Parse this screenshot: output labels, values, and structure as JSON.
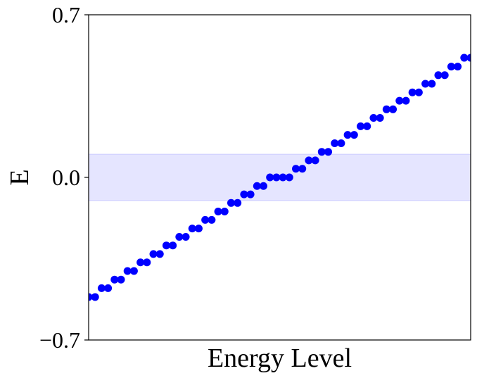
{
  "chart_data": {
    "type": "scatter",
    "title": "",
    "xlabel": "Energy Level",
    "ylabel": "E",
    "ylim": [
      -0.7,
      0.7
    ],
    "yticks": [
      {
        "value": 0.7,
        "label": "0.7"
      },
      {
        "value": 0.0,
        "label": "0.0"
      },
      {
        "value": -0.7,
        "label": "−0.7"
      }
    ],
    "xticks": [],
    "grid": false,
    "legend": "none",
    "band": {
      "ymin": -0.1,
      "ymax": 0.1,
      "color": "#0000ff",
      "opacity": 0.1
    },
    "series": [
      {
        "color": "#0000ff",
        "x": [
          0,
          1,
          2,
          3,
          4,
          5,
          6,
          7,
          8,
          9,
          10,
          11,
          12,
          13,
          14,
          15,
          16,
          17,
          18,
          19,
          20,
          21,
          22,
          23,
          24,
          25,
          26,
          27,
          28,
          29,
          30,
          31,
          32,
          33,
          34,
          35,
          36,
          37,
          38,
          39,
          40,
          41,
          42,
          43,
          44,
          45,
          46,
          47,
          48,
          49,
          50,
          51,
          52,
          53,
          54,
          55,
          56,
          57,
          58,
          59
        ],
        "y": [
          -0.515,
          -0.515,
          -0.477,
          -0.477,
          -0.44,
          -0.44,
          -0.403,
          -0.403,
          -0.366,
          -0.366,
          -0.33,
          -0.33,
          -0.293,
          -0.293,
          -0.256,
          -0.256,
          -0.22,
          -0.22,
          -0.183,
          -0.183,
          -0.147,
          -0.147,
          -0.11,
          -0.11,
          -0.073,
          -0.073,
          -0.037,
          -0.037,
          0.0,
          0.0,
          0.0,
          0.0,
          0.037,
          0.037,
          0.073,
          0.073,
          0.11,
          0.11,
          0.147,
          0.147,
          0.183,
          0.183,
          0.22,
          0.22,
          0.256,
          0.256,
          0.293,
          0.293,
          0.33,
          0.33,
          0.366,
          0.366,
          0.403,
          0.403,
          0.44,
          0.44,
          0.477,
          0.477,
          0.515,
          0.515
        ]
      }
    ]
  }
}
